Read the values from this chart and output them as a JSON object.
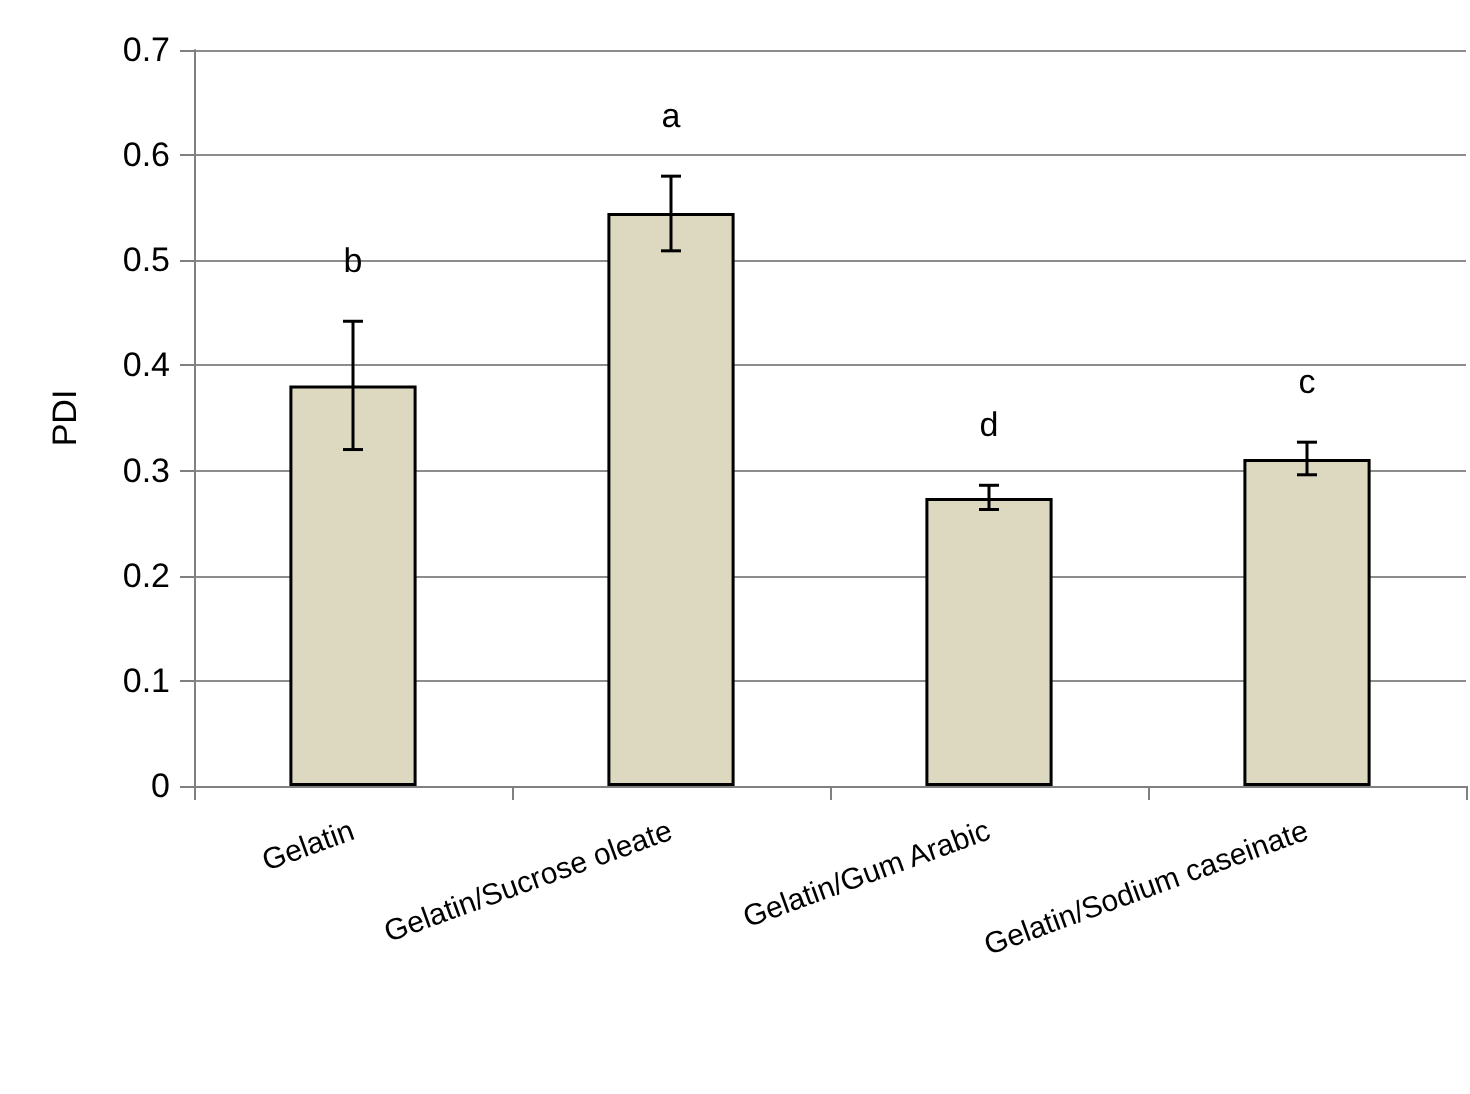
{
  "chart_data": {
    "type": "bar",
    "ylabel": "PDI",
    "categories": [
      "Gelatin",
      "Gelatin/Sucrose oleate",
      "Gelatin/Gum Arabic",
      "Gelatin/Sodium caseinate"
    ],
    "values": [
      0.381,
      0.545,
      0.274,
      0.311
    ],
    "color": "#ddd8c0",
    "errors": [
      [
        0.32,
        0.442
      ],
      [
        0.509,
        0.58
      ],
      [
        0.263,
        0.286
      ],
      [
        0.296,
        0.327
      ]
    ],
    "annotations": [
      "b",
      "a",
      "d",
      "c"
    ],
    "ylim": [
      0,
      0.7
    ],
    "yticks": [
      0,
      0.1,
      0.2,
      0.3,
      0.4,
      0.5,
      0.6,
      0.7
    ],
    "grid": "y"
  }
}
